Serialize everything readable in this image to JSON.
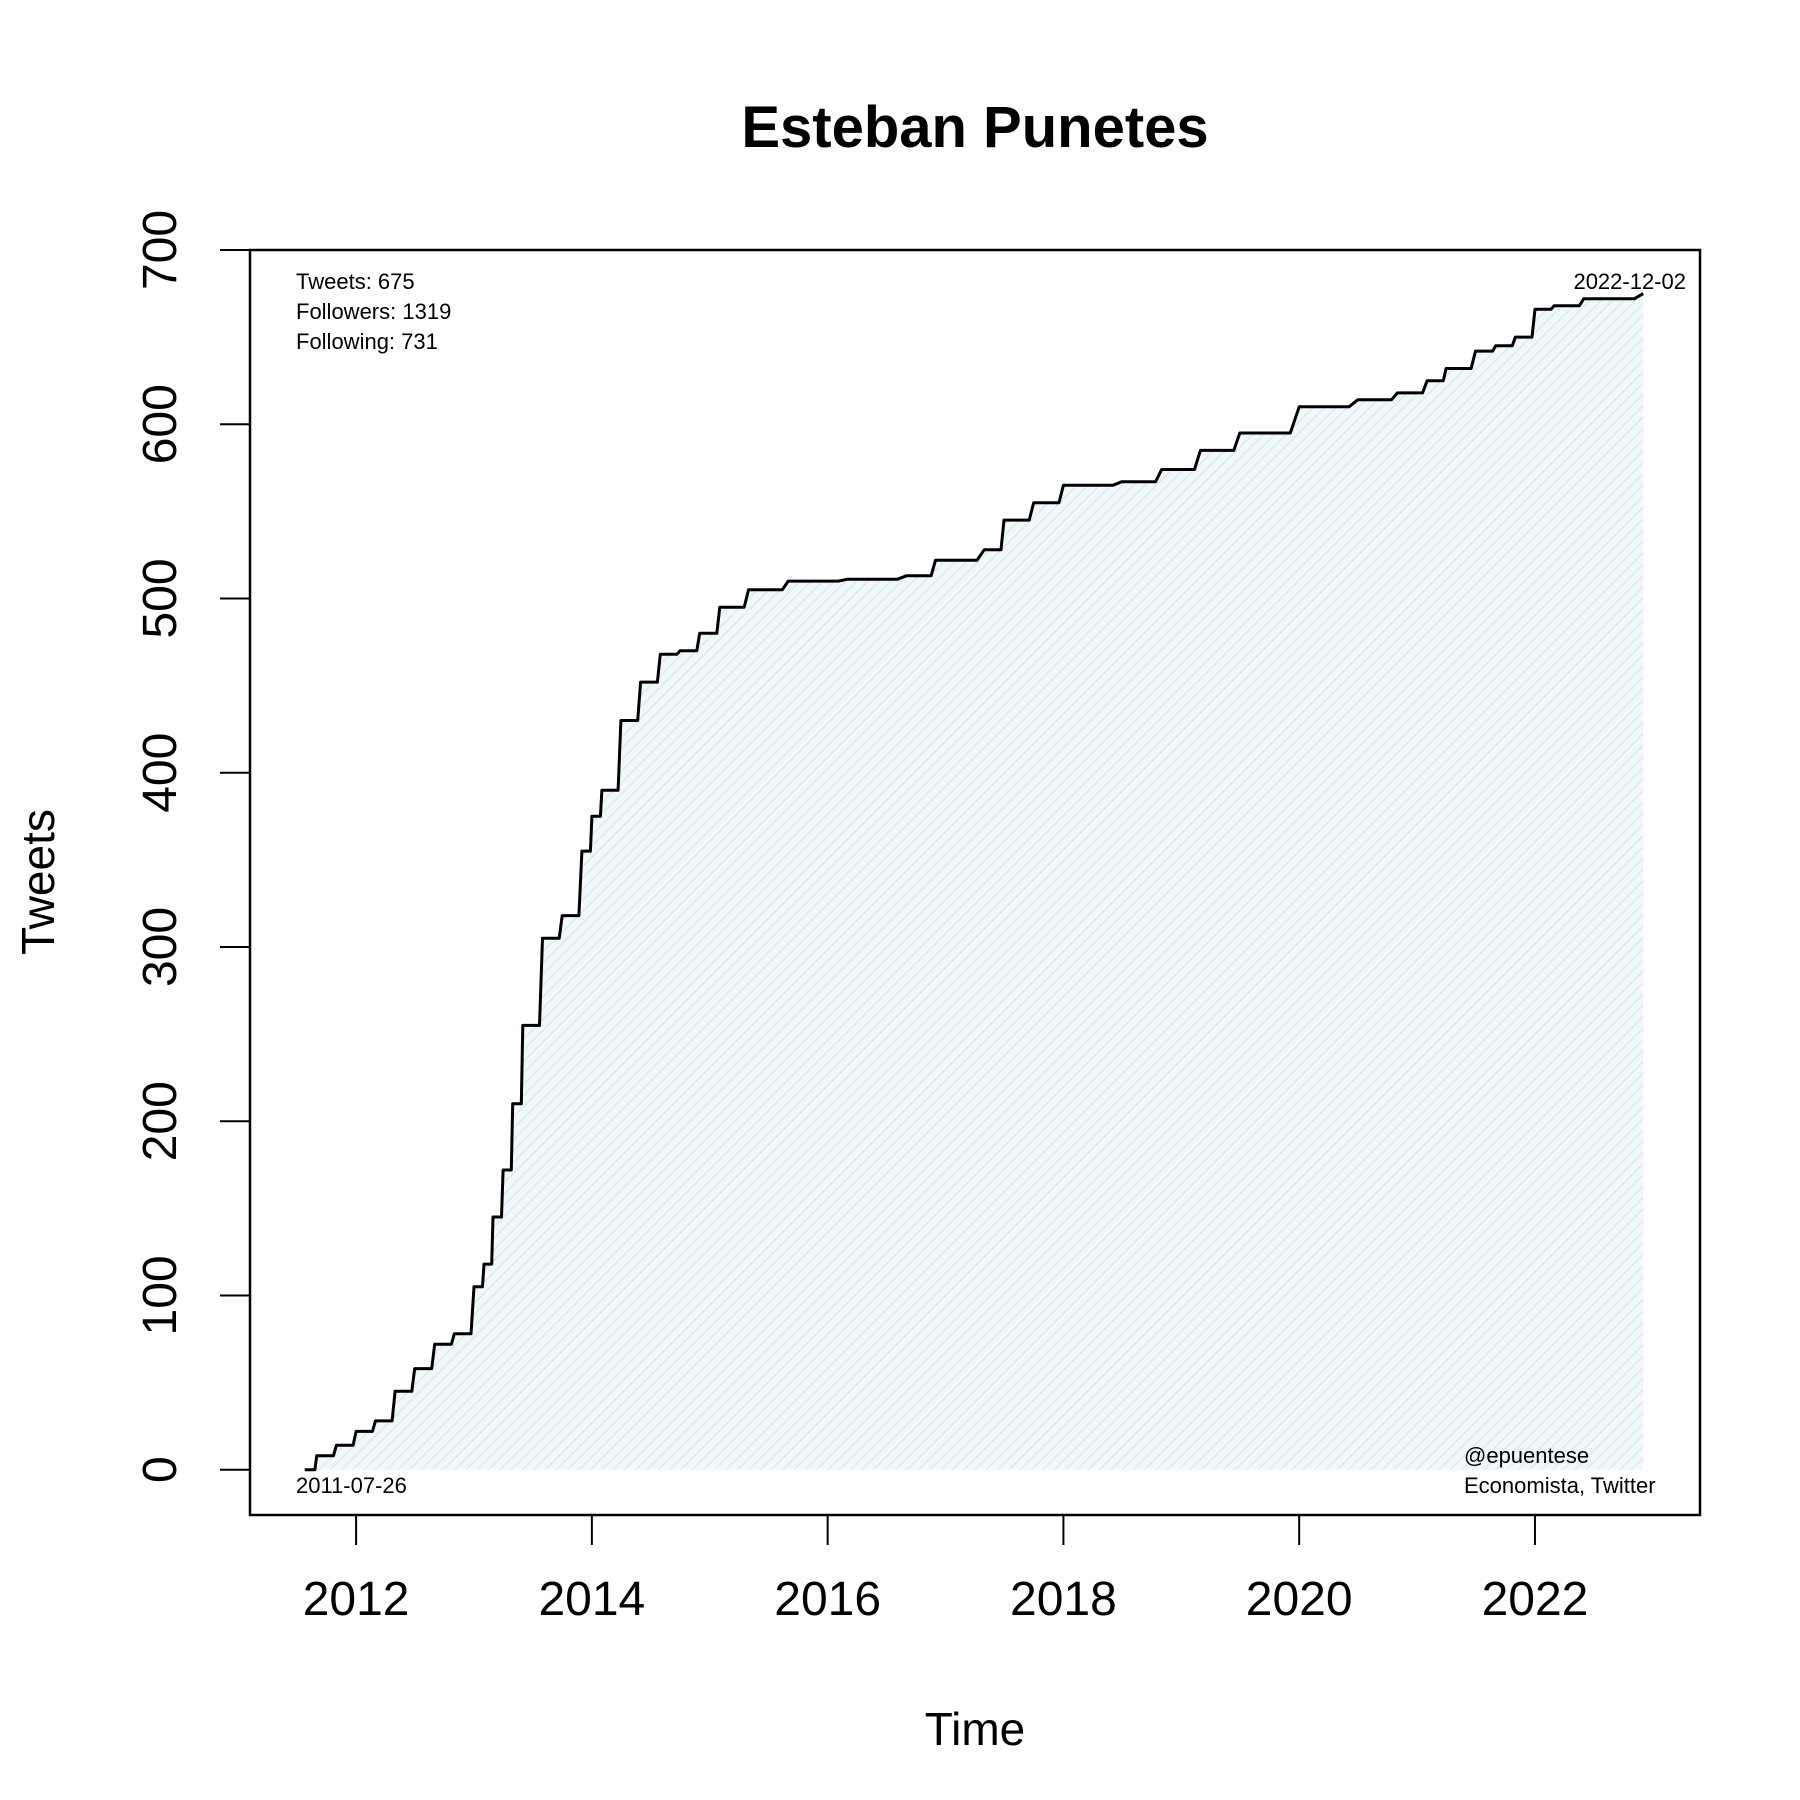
{
  "chart_data": {
    "type": "area",
    "title": "Esteban Punetes",
    "xlabel": "Time",
    "ylabel": "Tweets",
    "x_ticks": [
      "2012",
      "2014",
      "2016",
      "2018",
      "2020",
      "2022"
    ],
    "y_ticks": [
      "0",
      "100",
      "200",
      "300",
      "400",
      "500",
      "600",
      "700"
    ],
    "xlim": [
      2011.1,
      2023.4
    ],
    "ylim": [
      -26,
      700
    ],
    "grid": false,
    "legend": "none",
    "fill_color": "#e8f3f6",
    "line_color": "#000000",
    "stats": {
      "tweets": "Tweets: 675",
      "followers": "Followers: 1319",
      "following": "Following: 731"
    },
    "start_label": "2011-07-26",
    "end_label": "2022-12-02",
    "credit_handle": "@epuentese",
    "credit_desc": "Economista, Twitter",
    "series": [
      {
        "x": [
          "2011-07-26",
          "2011-09-01",
          "2011-11-01",
          "2012-01-01",
          "2012-03-01",
          "2012-05-01",
          "2012-07-01",
          "2012-09-01",
          "2012-11-01",
          "2013-01-01",
          "2013-02-01",
          "2013-03-01",
          "2013-04-01",
          "2013-05-01",
          "2013-06-01",
          "2013-08-01",
          "2013-10-01",
          "2013-12-01",
          "2014-01-01",
          "2014-02-01",
          "2014-04-01",
          "2014-06-01",
          "2014-08-01",
          "2014-10-01",
          "2014-12-01",
          "2015-02-01",
          "2015-05-01",
          "2015-09-01",
          "2016-03-01",
          "2016-09-01",
          "2016-12-01",
          "2017-05-01",
          "2017-07-01",
          "2017-10-01",
          "2018-01-01",
          "2018-07-01",
          "2018-11-01",
          "2019-03-01",
          "2019-07-01",
          "2020-01-01",
          "2020-07-01",
          "2020-11-01",
          "2021-02-01",
          "2021-04-01",
          "2021-07-01",
          "2021-09-01",
          "2021-11-01",
          "2022-01-01",
          "2022-03-01",
          "2022-06-01",
          "2022-12-02"
        ],
        "y": [
          0,
          8,
          14,
          22,
          28,
          45,
          58,
          72,
          78,
          105,
          118,
          145,
          172,
          210,
          255,
          305,
          318,
          355,
          375,
          390,
          430,
          452,
          468,
          470,
          480,
          495,
          505,
          510,
          511,
          513,
          522,
          528,
          545,
          555,
          565,
          567,
          574,
          585,
          595,
          610,
          614,
          618,
          625,
          632,
          642,
          645,
          650,
          666,
          668,
          672,
          675
        ]
      }
    ]
  }
}
